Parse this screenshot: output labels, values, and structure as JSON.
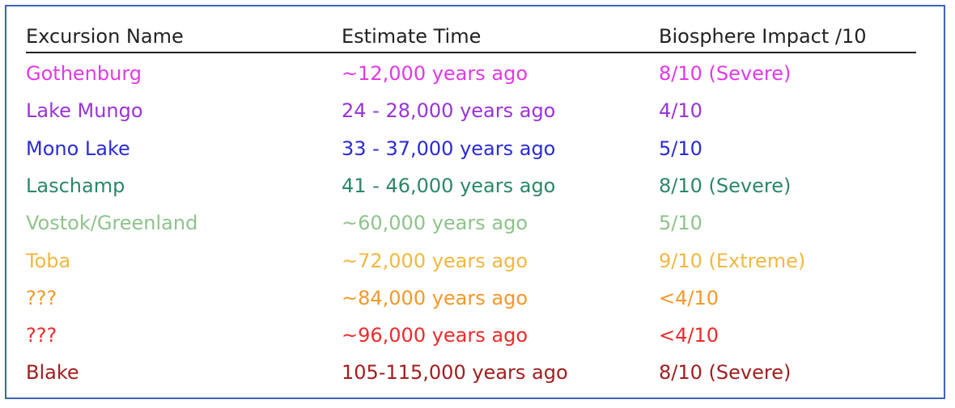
{
  "table": {
    "header": [
      "Excursion Name",
      "Estimate Time",
      "Biosphere Impact /10"
    ],
    "rows": [
      {
        "cells": [
          "Gothenburg",
          "~12,000 years ago",
          "8/10 (Severe)"
        ],
        "color": "#e03ae6"
      },
      {
        "cells": [
          "Lake Mungo",
          "24 - 28,000 years ago",
          "4/10"
        ],
        "color": "#9a33d8"
      },
      {
        "cells": [
          "Mono Lake",
          "33 - 37,000 years ago",
          "5/10"
        ],
        "color": "#2b2bd4"
      },
      {
        "cells": [
          "Laschamp",
          "41 - 46,000 years ago",
          "8/10 (Severe)"
        ],
        "color": "#2a8767"
      },
      {
        "cells": [
          "Vostok/Greenland",
          "~60,000 years ago",
          "5/10"
        ],
        "color": "#8ec38b"
      },
      {
        "cells": [
          "Toba",
          "~72,000 years ago",
          "9/10 (Extreme)"
        ],
        "color": "#f0b840"
      },
      {
        "cells": [
          "???",
          "~84,000 years ago",
          "<4/10"
        ],
        "color": "#f4982a"
      },
      {
        "cells": [
          "???",
          "~96,000 years ago",
          "<4/10"
        ],
        "color": "#ee2b2b"
      },
      {
        "cells": [
          "Blake",
          "105-115,000 years ago",
          "8/10 (Severe)"
        ],
        "color": "#a11e1e"
      }
    ]
  }
}
